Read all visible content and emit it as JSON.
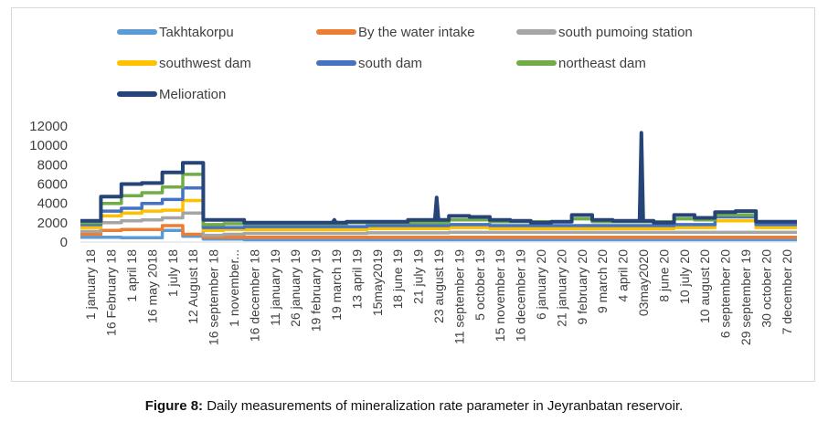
{
  "chart_data": {
    "type": "line",
    "title": "",
    "xlabel": "",
    "ylabel": "",
    "ylim": [
      0,
      12000
    ],
    "yticks": [
      0,
      2000,
      4000,
      6000,
      8000,
      10000,
      12000
    ],
    "grid": false,
    "legend_position": "top",
    "categories": [
      "1 january 18",
      "16 February 18",
      "1 april 18",
      "16 may 2018",
      "1 july 18",
      "12 August 18",
      "16 september 18",
      "1 november...",
      "16 december 18",
      "11 january 19",
      "26 january 19",
      "19 february 19",
      "19 march 19",
      "13 april 19",
      "15may2019",
      "18 june 19",
      "21 july 19",
      "23 august 19",
      "11 september 19",
      "5 october 19",
      "15 november 19",
      "16 december 19",
      "6 january 20",
      "21 january 20",
      "9 february 20",
      "9 march 20",
      "4 april 20",
      "03may2020",
      "8 june 20",
      "10 july 20",
      "10 august 20",
      "6 september 20",
      "29 september 19",
      "30 october 20",
      "7 december 20"
    ],
    "series": [
      {
        "name": "Takhtakorpu",
        "color": "#5b9bd5",
        "values": [
          500,
          500,
          450,
          450,
          1200,
          600,
          300,
          300,
          250,
          250,
          250,
          250,
          250,
          250,
          250,
          250,
          250,
          250,
          250,
          250,
          250,
          250,
          250,
          250,
          250,
          250,
          250,
          250,
          250,
          250,
          250,
          250,
          250,
          250,
          250
        ]
      },
      {
        "name": "By the water intake",
        "color": "#ed7d31",
        "values": [
          800,
          1200,
          1300,
          1300,
          1700,
          800,
          500,
          500,
          500,
          500,
          500,
          500,
          500,
          500,
          500,
          500,
          500,
          500,
          500,
          500,
          500,
          500,
          500,
          500,
          500,
          500,
          500,
          500,
          500,
          500,
          500,
          500,
          500,
          500,
          500
        ]
      },
      {
        "name": "south pumoing station",
        "color": "#a5a5a5",
        "values": [
          1100,
          2000,
          2200,
          2300,
          2500,
          3000,
          700,
          800,
          900,
          900,
          900,
          900,
          900,
          900,
          950,
          950,
          950,
          950,
          1000,
          1000,
          1000,
          1000,
          1000,
          1000,
          1000,
          1000,
          1000,
          1000,
          1000,
          1000,
          1000,
          1000,
          1000,
          1000,
          1000
        ]
      },
      {
        "name": "southwest dam",
        "color": "#ffc000",
        "values": [
          1500,
          2700,
          3000,
          3200,
          3300,
          4300,
          1200,
          1300,
          1300,
          1300,
          1300,
          1300,
          1300,
          1300,
          1400,
          1400,
          1400,
          1400,
          1500,
          1500,
          1400,
          1400,
          1400,
          1400,
          1400,
          1400,
          1400,
          1400,
          1400,
          1500,
          1500,
          2200,
          2200,
          1500,
          1500
        ]
      },
      {
        "name": "south dam",
        "color": "#4472c4",
        "values": [
          1800,
          3200,
          3500,
          4000,
          4400,
          5600,
          1500,
          1500,
          1600,
          1600,
          1600,
          1600,
          1600,
          1600,
          1700,
          1700,
          1700,
          1700,
          1800,
          1800,
          1700,
          1700,
          1700,
          1700,
          1700,
          1700,
          1700,
          1700,
          1700,
          1800,
          1800,
          2600,
          2600,
          1800,
          1800
        ]
      },
      {
        "name": "northeast dam",
        "color": "#70ad47",
        "values": [
          2000,
          4000,
          4800,
          5100,
          5700,
          7000,
          1800,
          1900,
          1900,
          1900,
          1900,
          1900,
          1900,
          2000,
          2000,
          2000,
          2000,
          2000,
          2300,
          2300,
          2100,
          2100,
          2100,
          2100,
          2400,
          2100,
          2100,
          2100,
          2100,
          2400,
          2300,
          2800,
          2800,
          2100,
          2100
        ]
      },
      {
        "name": "Melioration",
        "color": "#264478",
        "values": [
          2200,
          4700,
          6000,
          6100,
          7200,
          8200,
          2300,
          2300,
          2000,
          2000,
          2000,
          2000,
          2000,
          2100,
          2100,
          2100,
          2300,
          2300,
          2700,
          2600,
          2300,
          2200,
          2000,
          2100,
          2800,
          2300,
          2200,
          2200,
          2000,
          2800,
          2500,
          3100,
          3200,
          2100,
          2100
        ],
        "spikes": [
          {
            "category": "23 august 19",
            "value": 4600
          },
          {
            "category": "03may2020",
            "value": 11300
          },
          {
            "category": "19 march 19",
            "value": 2300
          }
        ]
      }
    ]
  },
  "caption": {
    "label": "Figure 8:",
    "text": " Daily measurements of mineralization rate parameter in Jeyranbatan reservoir."
  }
}
